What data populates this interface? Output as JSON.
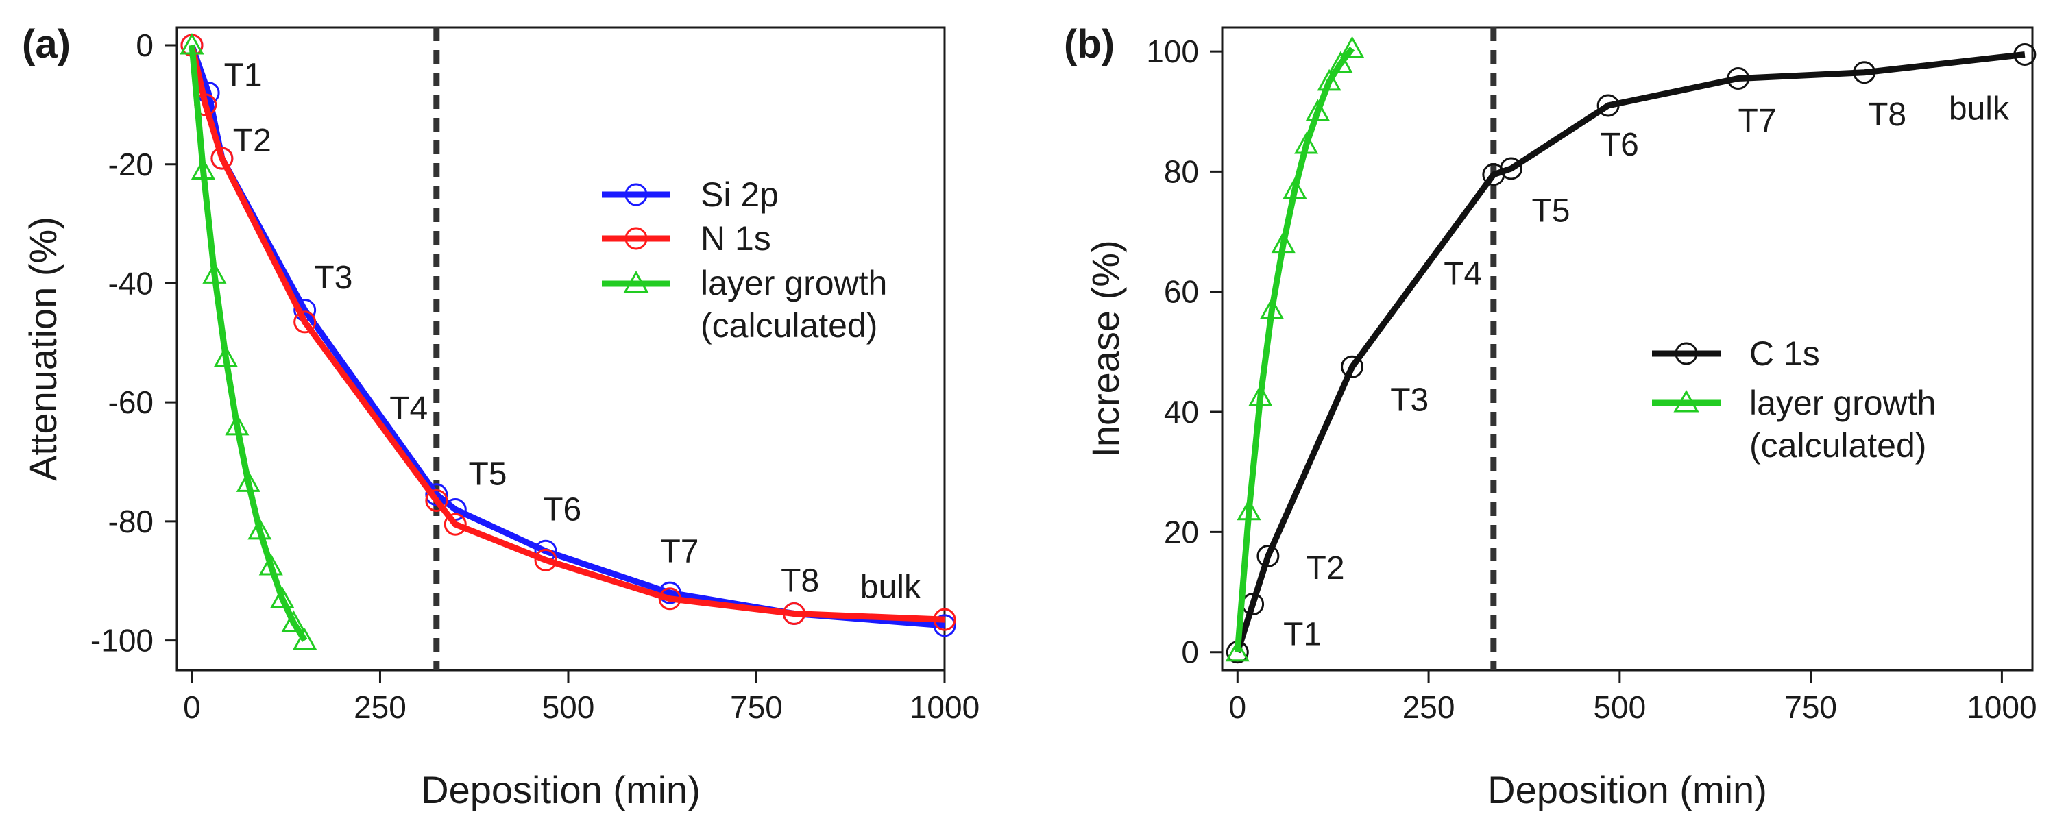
{
  "chart_data": [
    {
      "type": "line",
      "panel_label": "(a)",
      "xlabel": "Deposition (min)",
      "ylabel": "Attenuation (%)",
      "xlim": [
        -20,
        1000
      ],
      "ylim": [
        -105,
        3
      ],
      "x_ticks": [
        0,
        250,
        500,
        750,
        1000
      ],
      "y_ticks": [
        0,
        -20,
        -40,
        -60,
        -80,
        -100
      ],
      "series": [
        {
          "name": "Si 2p",
          "color": "#1a1aff",
          "marker": "circle",
          "x": [
            0,
            22,
            40,
            150,
            325,
            350,
            470,
            635,
            800,
            1000
          ],
          "y": [
            0,
            -8,
            -19,
            -44.5,
            -75.5,
            -78,
            -85,
            -92,
            -95.5,
            -97.5
          ]
        },
        {
          "name": "N 1s",
          "color": "#ff1a1a",
          "marker": "circle",
          "x": [
            0,
            18,
            40,
            150,
            325,
            350,
            470,
            635,
            800,
            1000
          ],
          "y": [
            0,
            -10,
            -19,
            -46.5,
            -76.5,
            -80.5,
            -86.5,
            -93,
            -95.5,
            -96.5
          ]
        },
        {
          "name": "layer growth",
          "name_line2": "(calculated)",
          "color": "#22cc22",
          "marker": "triangle",
          "x": [
            0,
            15,
            30,
            45,
            60,
            75,
            90,
            105,
            120,
            135,
            150
          ],
          "y": [
            0,
            -21,
            -38.5,
            -52.5,
            -64,
            -73.5,
            -81.5,
            -87.5,
            -93,
            -97,
            -100
          ]
        }
      ],
      "reference_line_x": 325,
      "annotations": [
        {
          "text": "T1",
          "x": 68,
          "y": -5
        },
        {
          "text": "T2",
          "x": 80,
          "y": -16
        },
        {
          "text": "T3",
          "x": 188,
          "y": -39
        },
        {
          "text": "T4",
          "x": 288,
          "y": -61
        },
        {
          "text": "T5",
          "x": 393,
          "y": -72
        },
        {
          "text": "T6",
          "x": 492,
          "y": -78
        },
        {
          "text": "T7",
          "x": 648,
          "y": -85
        },
        {
          "text": "T8",
          "x": 808,
          "y": -90
        },
        {
          "text": "bulk",
          "x": 928,
          "y": -91
        }
      ],
      "legend_position": "center-right"
    },
    {
      "type": "line",
      "panel_label": "(b)",
      "xlabel": "Deposition (min)",
      "ylabel": "Increase (%)",
      "xlim": [
        -20,
        1040
      ],
      "ylim": [
        -3,
        104
      ],
      "x_ticks": [
        0,
        250,
        500,
        750,
        1000
      ],
      "y_ticks": [
        0,
        20,
        40,
        60,
        80,
        100
      ],
      "series": [
        {
          "name": "C 1s",
          "color": "#111111",
          "marker": "circle",
          "x": [
            0,
            20,
            40,
            150,
            335,
            358,
            485,
            655,
            820,
            1030
          ],
          "y": [
            0,
            8,
            16,
            47.5,
            79.5,
            80.5,
            91,
            95.5,
            96.5,
            99.5
          ]
        },
        {
          "name": "layer growth",
          "name_line2": "(calculated)",
          "color": "#22cc22",
          "marker": "triangle",
          "x": [
            0,
            15,
            30,
            45,
            60,
            75,
            90,
            105,
            120,
            135,
            150
          ],
          "y": [
            0,
            23.5,
            42.5,
            57,
            68,
            77,
            84.5,
            90,
            95,
            98,
            100.5
          ]
        }
      ],
      "reference_line_x": 335,
      "annotations": [
        {
          "text": "T1",
          "x": 85,
          "y": 3
        },
        {
          "text": "T2",
          "x": 115,
          "y": 14
        },
        {
          "text": "T3",
          "x": 225,
          "y": 42
        },
        {
          "text": "T4",
          "x": 295,
          "y": 63
        },
        {
          "text": "T5",
          "x": 410,
          "y": 73.5
        },
        {
          "text": "T6",
          "x": 500,
          "y": 84.5
        },
        {
          "text": "T7",
          "x": 680,
          "y": 88.5
        },
        {
          "text": "T8",
          "x": 850,
          "y": 89.5
        },
        {
          "text": "bulk",
          "x": 970,
          "y": 90.5
        }
      ],
      "legend_position": "center-right"
    }
  ]
}
